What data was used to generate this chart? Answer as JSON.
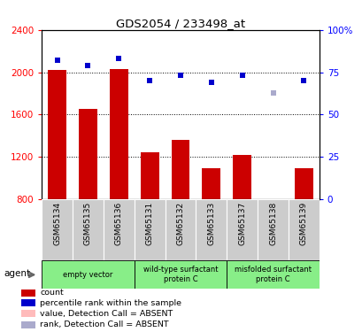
{
  "title": "GDS2054 / 233498_at",
  "samples": [
    "GSM65134",
    "GSM65135",
    "GSM65136",
    "GSM65131",
    "GSM65132",
    "GSM65133",
    "GSM65137",
    "GSM65138",
    "GSM65139"
  ],
  "bar_values": [
    2020,
    1650,
    2030,
    1240,
    1360,
    1090,
    1220,
    800,
    1090
  ],
  "bar_absent": [
    false,
    false,
    false,
    false,
    false,
    false,
    false,
    true,
    false
  ],
  "rank_values": [
    82,
    79,
    83,
    70,
    73,
    69,
    73,
    63,
    70
  ],
  "rank_absent": [
    false,
    false,
    false,
    false,
    false,
    false,
    false,
    true,
    false
  ],
  "bar_color": "#cc0000",
  "bar_absent_color": "#ffbbbb",
  "rank_color": "#0000cc",
  "rank_absent_color": "#aaaacc",
  "ylim_left": [
    800,
    2400
  ],
  "ylim_right": [
    0,
    100
  ],
  "yticks_left": [
    800,
    1200,
    1600,
    2000,
    2400
  ],
  "yticks_right": [
    0,
    25,
    50,
    75,
    100
  ],
  "ytick_labels_right": [
    "0",
    "25",
    "50",
    "75",
    "100%"
  ],
  "groups": [
    {
      "label": "empty vector",
      "start": 0,
      "end": 3
    },
    {
      "label": "wild-type surfactant\nprotein C",
      "start": 3,
      "end": 6
    },
    {
      "label": "misfolded surfactant\nprotein C",
      "start": 6,
      "end": 9
    }
  ],
  "sample_bg_color": "#cccccc",
  "group_bg_color": "#88ee88",
  "agent_label": "agent",
  "legend_items": [
    {
      "label": "count",
      "color": "#cc0000"
    },
    {
      "label": "percentile rank within the sample",
      "color": "#0000cc"
    },
    {
      "label": "value, Detection Call = ABSENT",
      "color": "#ffbbbb"
    },
    {
      "label": "rank, Detection Call = ABSENT",
      "color": "#aaaacc"
    }
  ]
}
